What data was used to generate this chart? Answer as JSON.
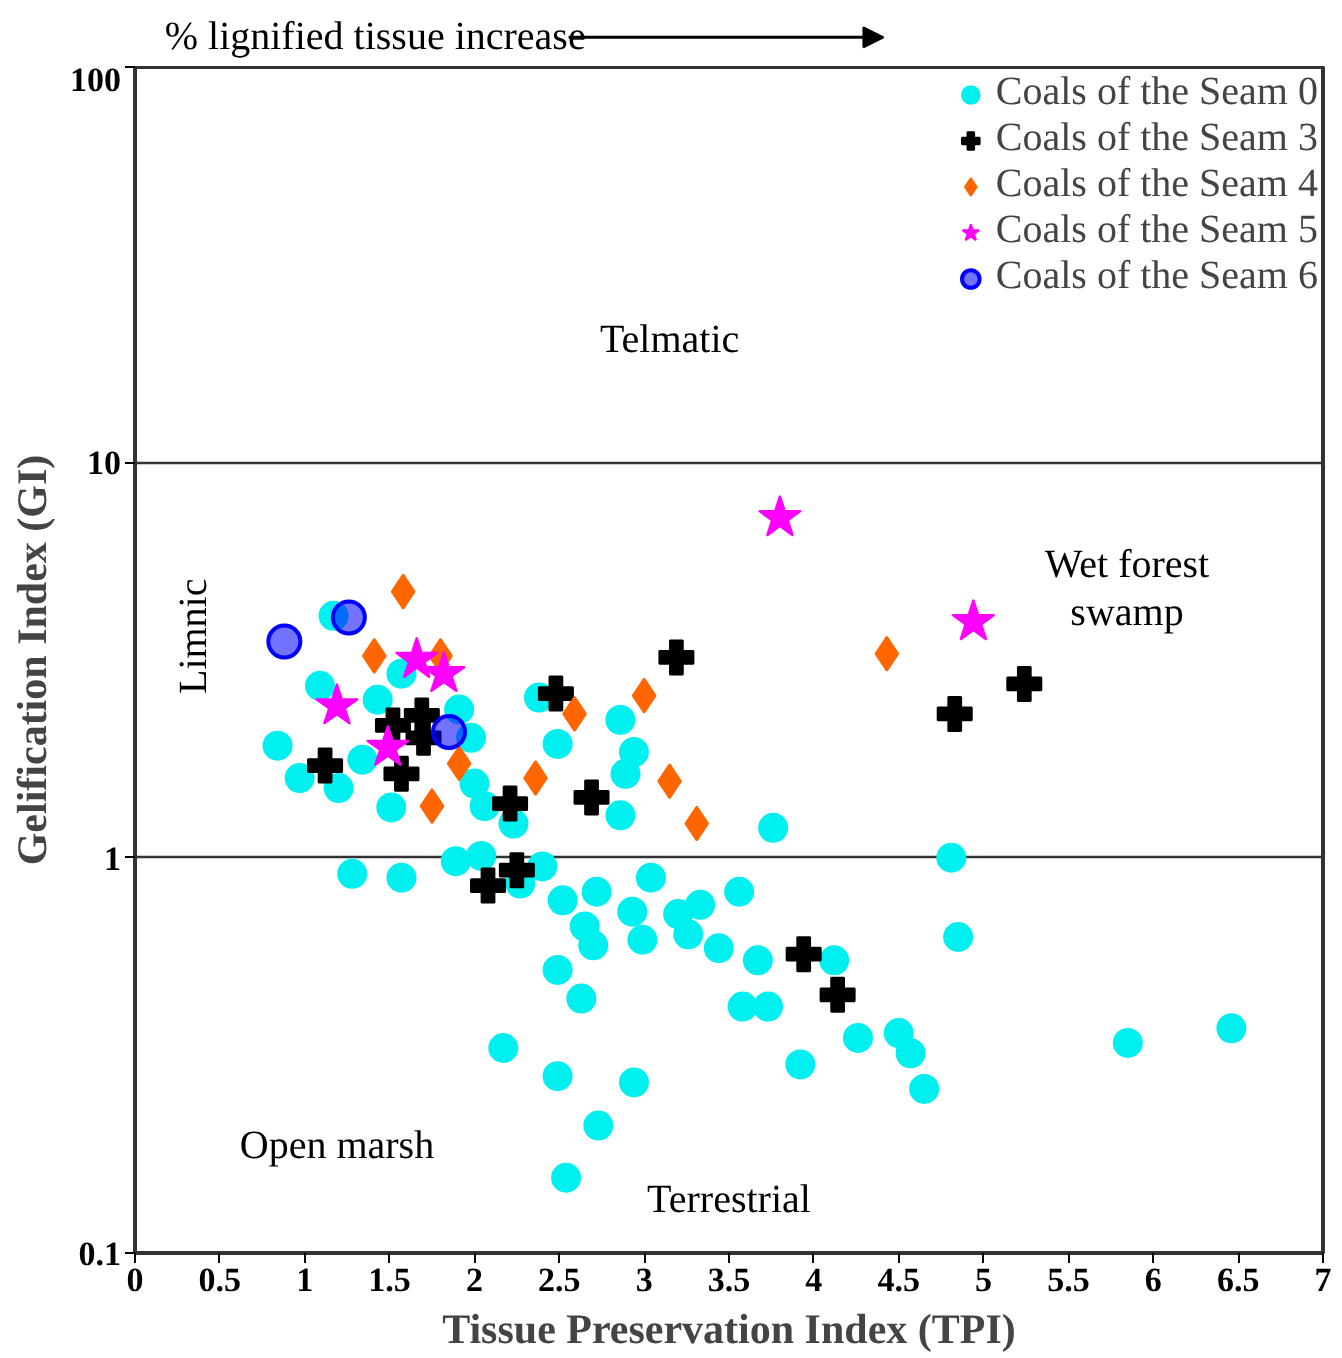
{
  "chart_data": {
    "type": "scatter",
    "xlabel": "Tissue Preservation Index (TPI)",
    "ylabel": "Gelification Index (GI)",
    "xlim": [
      0,
      7
    ],
    "xticks": [
      0,
      0.5,
      1,
      1.5,
      2,
      2.5,
      3,
      3.5,
      4,
      4.5,
      5,
      5.5,
      6,
      6.5,
      7
    ],
    "ylim": [
      0.1,
      100
    ],
    "yticks": [
      0.1,
      1,
      10,
      100
    ],
    "log": "y",
    "grid": "y",
    "legend": "top right",
    "annotations": [
      "% lignified tissue increase",
      "Limnic",
      "Telmatic",
      "Wet forest\nswamp",
      "Open marsh",
      "Terrestrial"
    ],
    "series": [
      {
        "name": "Coals of the Seam 0",
        "color": "#00f0f0",
        "marker": "circle",
        "x": [
          1.17,
          1.09,
          1.43,
          0.84,
          0.97,
          1.2,
          1.34,
          1.51,
          1.57,
          1.91,
          1.98,
          2.0,
          2.06,
          2.23,
          2.38,
          2.49,
          1.28,
          1.57,
          1.89,
          2.04,
          2.4,
          2.52,
          2.86,
          2.94,
          2.89,
          2.86,
          2.27,
          2.72,
          2.65,
          2.7,
          2.93,
          3.04,
          2.99,
          3.2,
          3.26,
          3.33,
          3.44,
          3.56,
          3.67,
          3.76,
          4.12,
          2.49,
          2.63,
          3.58,
          3.73,
          4.26,
          4.5,
          4.57,
          4.65,
          3.92,
          2.17,
          2.49,
          2.94,
          2.73,
          2.54,
          4.81,
          4.85,
          5.85,
          6.46
        ],
        "values": [
          4.09,
          2.72,
          2.51,
          1.92,
          1.59,
          1.5,
          1.77,
          1.34,
          2.92,
          2.37,
          2.01,
          1.54,
          1.35,
          1.22,
          2.54,
          1.94,
          0.91,
          0.89,
          0.98,
          1.01,
          0.95,
          0.78,
          2.23,
          1.85,
          1.63,
          1.28,
          0.86,
          0.82,
          0.67,
          0.6,
          0.73,
          0.89,
          0.62,
          0.72,
          0.64,
          0.76,
          0.59,
          0.82,
          0.55,
          1.19,
          0.55,
          0.52,
          0.44,
          0.42,
          0.42,
          0.35,
          0.36,
          0.32,
          0.26,
          0.3,
          0.33,
          0.28,
          0.27,
          0.21,
          0.155,
          1.0,
          0.63,
          0.34,
          0.37
        ]
      },
      {
        "name": "Coals of the Seam 3",
        "color": "#000000",
        "marker": "cross",
        "x": [
          1.12,
          1.52,
          1.57,
          1.69,
          1.7,
          2.21,
          2.48,
          2.08,
          2.25,
          3.19,
          2.69,
          3.94,
          4.14,
          4.83,
          5.24
        ],
        "values": [
          1.71,
          2.16,
          1.63,
          2.29,
          2.01,
          1.37,
          2.6,
          0.85,
          0.93,
          3.21,
          1.42,
          0.57,
          0.45,
          2.31,
          2.75
        ]
      },
      {
        "name": "Coals of the Seam 4",
        "color": "#ff6600",
        "marker": "diamond",
        "x": [
          1.58,
          1.41,
          1.8,
          1.91,
          2.36,
          1.75,
          2.59,
          3.0,
          3.15,
          3.31,
          4.43
        ],
        "values": [
          4.71,
          3.24,
          3.24,
          1.73,
          1.59,
          1.35,
          2.31,
          2.57,
          1.56,
          1.22,
          3.28
        ]
      },
      {
        "name": "Coals of the Seam 5",
        "color": "#ff00ff",
        "marker": "star",
        "x": [
          1.66,
          1.82,
          1.19,
          1.49,
          3.8,
          4.94
        ],
        "values": [
          3.17,
          2.92,
          2.42,
          1.9,
          7.24,
          3.95
        ]
      },
      {
        "name": "Coals of the Seam 6",
        "color": "#0000ff",
        "marker": "half_circle",
        "x": [
          0.88,
          1.26,
          1.85
        ],
        "values": [
          3.52,
          4.05,
          2.08
        ]
      }
    ]
  }
}
